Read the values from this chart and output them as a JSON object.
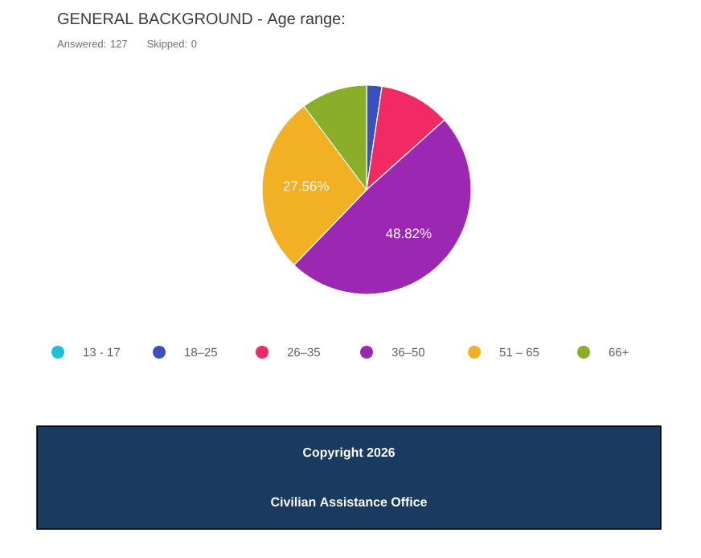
{
  "chart_data": {
    "type": "pie",
    "title": "GENERAL BACKGROUND - Age range:",
    "subtitle": "Answered: 127     Skipped: 0",
    "categories": [
      "13 - 17",
      "18–25",
      "26–35",
      "36–50",
      "51 – 65",
      "66+"
    ],
    "values": [
      0,
      2.36,
      11.02,
      48.82,
      27.56,
      10.24
    ],
    "colors": [
      "#1ec0d8",
      "#3a4fc0",
      "#f02a63",
      "#9c27b0",
      "#f2b024",
      "#8bae2a"
    ],
    "value_labels": [
      null,
      null,
      null,
      "48.82%",
      "27.56%",
      null
    ],
    "legend": "bottom",
    "annotations": [
      "Copyright 2026",
      "Civilian Assistance Office"
    ]
  }
}
